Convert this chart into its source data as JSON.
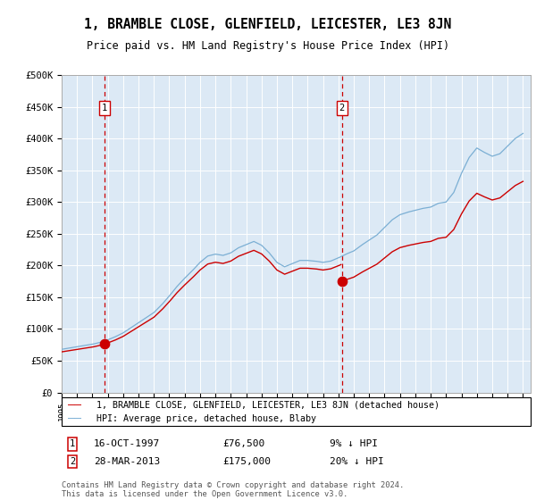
{
  "title": "1, BRAMBLE CLOSE, GLENFIELD, LEICESTER, LE3 8JN",
  "subtitle": "Price paid vs. HM Land Registry's House Price Index (HPI)",
  "background_color": "#dce9f5",
  "ylabel_color": "#000000",
  "ylim": [
    0,
    500000
  ],
  "yticks": [
    0,
    50000,
    100000,
    150000,
    200000,
    250000,
    300000,
    350000,
    400000,
    450000,
    500000
  ],
  "ytick_labels": [
    "£0",
    "£50K",
    "£100K",
    "£150K",
    "£200K",
    "£250K",
    "£300K",
    "£350K",
    "£400K",
    "£450K",
    "£500K"
  ],
  "sale1_year": 1997.79,
  "sale1_price": 76500,
  "sale2_year": 2013.23,
  "sale2_price": 175000,
  "legend_line1": "1, BRAMBLE CLOSE, GLENFIELD, LEICESTER, LE3 8JN (detached house)",
  "legend_line2": "HPI: Average price, detached house, Blaby",
  "sale1_annotation": "16-OCT-1997",
  "sale1_price_str": "£76,500",
  "sale1_pct": "9% ↓ HPI",
  "sale2_annotation": "28-MAR-2013",
  "sale2_price_str": "£175,000",
  "sale2_pct": "20% ↓ HPI",
  "footer": "Contains HM Land Registry data © Crown copyright and database right 2024.\nThis data is licensed under the Open Government Licence v3.0.",
  "sale_color": "#cc0000",
  "hpi_color": "#7bafd4",
  "dashed_line_color": "#cc0000",
  "xlim_start": 1995.0,
  "xlim_end": 2025.5
}
